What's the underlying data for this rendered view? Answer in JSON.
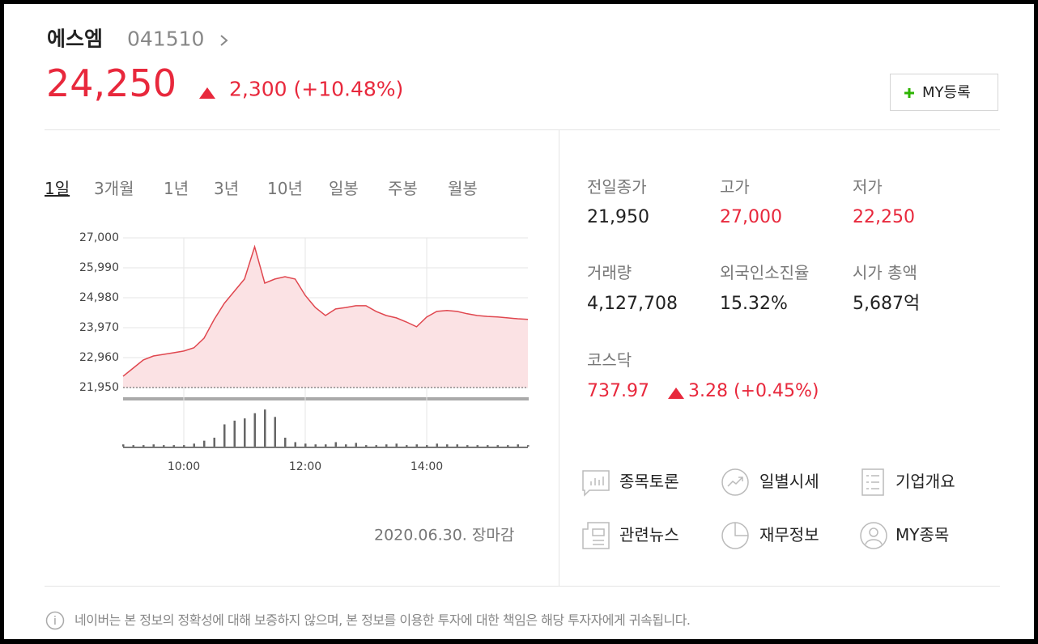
{
  "header": {
    "name": "에스엠",
    "code": "041510",
    "price": "24,250",
    "change": "2,300 (+10.48%)",
    "my_button": "MY등록"
  },
  "tabs": [
    "1일",
    "3개월",
    "1년",
    "3년",
    "10년",
    "일봉",
    "주봉",
    "월봉"
  ],
  "chart_data": [
    {
      "type": "line",
      "x": [
        "09:00",
        "09:10",
        "09:20",
        "09:30",
        "09:40",
        "09:50",
        "10:00",
        "10:10",
        "10:20",
        "10:30",
        "10:40",
        "10:50",
        "11:00",
        "11:10",
        "11:20",
        "11:30",
        "11:40",
        "11:50",
        "12:00",
        "12:10",
        "12:20",
        "12:30",
        "12:40",
        "12:50",
        "13:00",
        "13:10",
        "13:20",
        "13:30",
        "13:40",
        "13:50",
        "14:00",
        "14:10",
        "14:20",
        "14:30",
        "14:40",
        "14:50",
        "15:00",
        "15:10",
        "15:20",
        "15:30",
        "15:40"
      ],
      "values": [
        22330,
        22605,
        22880,
        23015,
        23070,
        23125,
        23180,
        23290,
        23615,
        24245,
        24790,
        25200,
        25610,
        26700,
        25470,
        25610,
        25690,
        25610,
        25060,
        24650,
        24380,
        24600,
        24650,
        24710,
        24710,
        24520,
        24380,
        24300,
        24160,
        24000,
        24330,
        24520,
        24550,
        24520,
        24440,
        24380,
        24350,
        24330,
        24300,
        24270,
        24250
      ],
      "color": "#e0474f",
      "area_color": "#fbe2e4",
      "ylim": [
        21950,
        27000
      ],
      "yticks": [
        {
          "value": 27000,
          "label": "27,000"
        },
        {
          "value": 25990,
          "label": "25,990"
        },
        {
          "value": 24980,
          "label": "24,980"
        },
        {
          "value": 23970,
          "label": "23,970"
        },
        {
          "value": 22960,
          "label": "22,960"
        },
        {
          "value": 21950,
          "label": "21,950"
        }
      ],
      "xticks": [
        "10:00",
        "12:00",
        "14:00"
      ],
      "grid": true
    },
    {
      "type": "bar",
      "x": [
        "09:00",
        "09:10",
        "09:20",
        "09:30",
        "09:40",
        "09:50",
        "10:00",
        "10:10",
        "10:20",
        "10:30",
        "10:40",
        "10:50",
        "11:00",
        "11:10",
        "11:20",
        "11:30",
        "11:40",
        "11:50",
        "12:00",
        "12:10",
        "12:20",
        "12:30",
        "12:40",
        "12:50",
        "13:00",
        "13:10",
        "13:20",
        "13:30",
        "13:40",
        "13:50",
        "14:00",
        "14:10",
        "14:20",
        "14:30",
        "14:40",
        "14:50",
        "15:00",
        "15:10",
        "15:20",
        "15:30",
        "15:40"
      ],
      "values": [
        3,
        2,
        2,
        3,
        2,
        2,
        2,
        4,
        8,
        12,
        30,
        35,
        38,
        45,
        50,
        40,
        12,
        6,
        4,
        3,
        3,
        6,
        3,
        5,
        2,
        2,
        3,
        4,
        2,
        3,
        2,
        4,
        3,
        3,
        2,
        2,
        2,
        2,
        2,
        3,
        2
      ],
      "color": "#666",
      "ylim": [
        0,
        60
      ]
    }
  ],
  "chart_footer": "2020.06.30. 장마감",
  "stats": [
    {
      "label": "전일종가",
      "value": "21,950"
    },
    {
      "label": "고가",
      "value": "27,000"
    },
    {
      "label": "저가",
      "value": "22,250"
    },
    {
      "label": "거래량",
      "value": "4,127,708"
    },
    {
      "label": "외국인소진율",
      "value": "15.32%"
    },
    {
      "label": "시가 총액",
      "value": "5,687억"
    }
  ],
  "index": {
    "name": "코스닥",
    "value": "737.97",
    "change": "3.28 (+0.45%)"
  },
  "menu": [
    "종목토론",
    "일별시세",
    "기업개요",
    "관련뉴스",
    "재무정보",
    "MY종목"
  ],
  "notice": "네이버는 본 정보의 정확성에 대해 보증하지 않으며, 본 정보를 이용한 투자에 대한 책임은 해당 투자자에게 귀속됩니다."
}
